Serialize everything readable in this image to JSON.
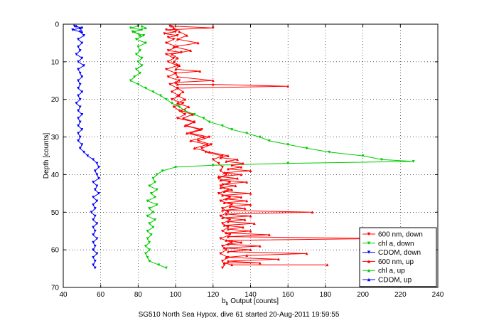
{
  "caption": "SG510 North Sea Hypox, dive 61 started 20-Aug-2011 19:59:55",
  "chart_data": {
    "type": "line",
    "xlabel_main": "b",
    "xlabel_sub": "b",
    "xlabel_rest": " Output [counts]",
    "ylabel": "Depth [counts]",
    "xlim": [
      40,
      240
    ],
    "ylim": [
      0,
      70
    ],
    "y_reversed": true,
    "grid": true,
    "legend_position": "bottom-right",
    "x_ticks": [
      40,
      60,
      80,
      100,
      120,
      140,
      160,
      180,
      200,
      220,
      240
    ],
    "y_ticks": [
      0,
      10,
      20,
      30,
      40,
      50,
      60,
      70
    ],
    "series": [
      {
        "name": "600 nm, down",
        "color": "#ff0000",
        "marker": "down-triangle",
        "points": [
          [
            97,
            0.5
          ],
          [
            120,
            1
          ],
          [
            95,
            1.5
          ],
          [
            100,
            2
          ],
          [
            94,
            2.5
          ],
          [
            101,
            3
          ],
          [
            96,
            3.5
          ],
          [
            99,
            4
          ],
          [
            95,
            5
          ],
          [
            101,
            6
          ],
          [
            96,
            7
          ],
          [
            103,
            7.5
          ],
          [
            95,
            8
          ],
          [
            99,
            9
          ],
          [
            96,
            10
          ],
          [
            101,
            11
          ],
          [
            95,
            12
          ],
          [
            100,
            13
          ],
          [
            96,
            14
          ],
          [
            102,
            15
          ],
          [
            97,
            16
          ],
          [
            101,
            17
          ],
          [
            98,
            18
          ],
          [
            102,
            19
          ],
          [
            98,
            20
          ],
          [
            104,
            21
          ],
          [
            99,
            22
          ],
          [
            102,
            23
          ],
          [
            105,
            24
          ],
          [
            101,
            25
          ],
          [
            110,
            26
          ],
          [
            106,
            27
          ],
          [
            114,
            28
          ],
          [
            108,
            29
          ],
          [
            118,
            30
          ],
          [
            112,
            31
          ],
          [
            119,
            32
          ],
          [
            114,
            33
          ],
          [
            116,
            34
          ],
          [
            125,
            35
          ],
          [
            120,
            36
          ],
          [
            123,
            37
          ],
          [
            125,
            38
          ],
          [
            124,
            39
          ],
          [
            127,
            40
          ],
          [
            123,
            41
          ],
          [
            129,
            42
          ],
          [
            124,
            43
          ],
          [
            128,
            44
          ],
          [
            123,
            45
          ],
          [
            129,
            46
          ],
          [
            124,
            47
          ],
          [
            130,
            48
          ],
          [
            125,
            49
          ],
          [
            128,
            50
          ],
          [
            124,
            51
          ],
          [
            129,
            52
          ],
          [
            125,
            53
          ],
          [
            128,
            54
          ],
          [
            125,
            55
          ],
          [
            129,
            56
          ],
          [
            124,
            57
          ],
          [
            130,
            58
          ],
          [
            125,
            59
          ],
          [
            127,
            60
          ],
          [
            124,
            61
          ],
          [
            128,
            62
          ],
          [
            125,
            63
          ],
          [
            126,
            64
          ],
          [
            125,
            64.8
          ]
        ]
      },
      {
        "name": "chl a, down",
        "color": "#00cc00",
        "marker": "down-triangle",
        "points": [
          [
            80,
            0.5
          ],
          [
            76,
            1
          ],
          [
            82,
            1.5
          ],
          [
            77,
            2
          ],
          [
            83,
            3
          ],
          [
            79,
            4
          ],
          [
            84,
            5
          ],
          [
            80,
            6
          ],
          [
            81,
            7
          ],
          [
            79,
            8
          ],
          [
            82,
            9
          ],
          [
            80,
            10
          ],
          [
            82,
            11
          ],
          [
            79,
            12
          ],
          [
            81,
            13
          ],
          [
            78,
            14
          ],
          [
            76,
            15
          ],
          [
            80,
            16
          ],
          [
            84,
            17
          ],
          [
            88,
            18
          ],
          [
            92,
            19
          ],
          [
            95,
            20
          ],
          [
            98,
            21
          ],
          [
            102,
            22
          ],
          [
            105,
            23
          ],
          [
            110,
            24
          ],
          [
            115,
            25
          ],
          [
            118,
            26
          ],
          [
            125,
            27
          ],
          [
            130,
            28
          ],
          [
            138,
            29
          ],
          [
            145,
            30
          ],
          [
            150,
            31
          ],
          [
            160,
            32
          ],
          [
            170,
            33
          ],
          [
            182,
            34
          ],
          [
            200,
            35
          ],
          [
            210,
            36
          ],
          [
            227,
            36.5
          ],
          [
            160,
            37
          ],
          [
            120,
            37.5
          ],
          [
            100,
            38
          ],
          [
            93,
            39
          ],
          [
            90,
            40
          ],
          [
            88,
            41
          ],
          [
            89,
            42
          ],
          [
            86,
            43
          ],
          [
            90,
            44
          ],
          [
            87,
            45
          ],
          [
            89,
            46
          ],
          [
            85,
            47
          ],
          [
            90,
            48
          ],
          [
            86,
            49
          ],
          [
            88,
            50
          ],
          [
            85,
            51
          ],
          [
            89,
            52
          ],
          [
            86,
            53
          ],
          [
            88,
            54
          ],
          [
            85,
            55
          ],
          [
            87,
            56
          ],
          [
            85,
            57
          ],
          [
            86,
            58
          ],
          [
            84,
            59
          ],
          [
            86,
            60
          ],
          [
            84,
            61
          ],
          [
            85,
            62
          ],
          [
            86,
            63
          ],
          [
            91,
            64
          ],
          [
            95,
            64.8
          ]
        ]
      },
      {
        "name": "CDOM, down",
        "color": "#0000ff",
        "marker": "down-triangle",
        "points": [
          [
            46,
            0.5
          ],
          [
            50,
            1
          ],
          [
            45,
            1.5
          ],
          [
            49,
            2
          ],
          [
            51,
            3
          ],
          [
            48,
            4
          ],
          [
            50,
            5
          ],
          [
            48,
            6
          ],
          [
            49,
            7
          ],
          [
            47,
            8
          ],
          [
            50,
            9
          ],
          [
            48,
            10
          ],
          [
            51,
            11
          ],
          [
            48,
            12
          ],
          [
            49,
            13
          ],
          [
            50,
            14
          ],
          [
            48,
            15
          ],
          [
            49,
            16
          ],
          [
            48,
            17
          ],
          [
            50,
            18
          ],
          [
            48,
            19
          ],
          [
            49,
            20
          ],
          [
            47,
            21
          ],
          [
            49,
            22
          ],
          [
            48,
            23
          ],
          [
            50,
            24
          ],
          [
            48,
            25
          ],
          [
            49,
            26
          ],
          [
            48,
            27
          ],
          [
            50,
            28
          ],
          [
            48,
            29
          ],
          [
            49,
            30
          ],
          [
            48,
            31
          ],
          [
            50,
            32
          ],
          [
            49,
            33
          ],
          [
            51,
            34
          ],
          [
            53,
            35
          ],
          [
            56,
            36
          ],
          [
            58,
            37
          ],
          [
            59,
            38
          ],
          [
            57,
            39
          ],
          [
            58,
            40
          ],
          [
            59,
            41
          ],
          [
            56,
            42
          ],
          [
            58,
            43
          ],
          [
            57,
            44
          ],
          [
            59,
            45
          ],
          [
            56,
            46
          ],
          [
            58,
            47
          ],
          [
            56,
            48
          ],
          [
            57,
            49
          ],
          [
            55,
            50
          ],
          [
            57,
            51
          ],
          [
            56,
            52
          ],
          [
            58,
            53
          ],
          [
            56,
            54
          ],
          [
            57,
            55
          ],
          [
            56,
            56
          ],
          [
            58,
            57
          ],
          [
            56,
            58
          ],
          [
            57,
            59
          ],
          [
            56,
            60
          ],
          [
            58,
            61
          ],
          [
            56,
            62
          ],
          [
            57,
            63
          ],
          [
            56,
            64
          ],
          [
            57,
            64.8
          ]
        ]
      },
      {
        "name": "600 nm, up",
        "color": "#ff0000",
        "marker": "up-triangle",
        "points": [
          [
            181,
            64
          ],
          [
            130,
            64
          ],
          [
            126,
            63.5
          ],
          [
            145,
            63.5
          ],
          [
            128,
            63
          ],
          [
            155,
            62.5
          ],
          [
            127,
            62
          ],
          [
            138,
            61.5
          ],
          [
            170,
            61
          ],
          [
            128,
            60.5
          ],
          [
            140,
            60
          ],
          [
            126,
            59.5
          ],
          [
            145,
            59
          ],
          [
            128,
            58.5
          ],
          [
            135,
            58
          ],
          [
            127,
            57.5
          ],
          [
            210,
            57
          ],
          [
            128,
            56.5
          ],
          [
            150,
            56
          ],
          [
            127,
            55.5
          ],
          [
            140,
            55
          ],
          [
            128,
            54.5
          ],
          [
            136,
            54
          ],
          [
            126,
            53.5
          ],
          [
            142,
            53
          ],
          [
            128,
            52.5
          ],
          [
            137,
            52
          ],
          [
            125,
            51.5
          ],
          [
            140,
            51
          ],
          [
            127,
            50.5
          ],
          [
            173,
            50
          ],
          [
            125,
            49.5
          ],
          [
            137,
            49
          ],
          [
            129,
            48.5
          ],
          [
            140,
            48
          ],
          [
            126,
            47.5
          ],
          [
            138,
            47
          ],
          [
            127,
            46.5
          ],
          [
            135,
            46
          ],
          [
            125,
            45.5
          ],
          [
            140,
            45
          ],
          [
            126,
            44.5
          ],
          [
            130,
            44
          ],
          [
            124,
            43.5
          ],
          [
            132,
            43
          ],
          [
            125,
            42.5
          ],
          [
            138,
            42
          ],
          [
            124,
            41.5
          ],
          [
            133,
            41
          ],
          [
            123,
            40.5
          ],
          [
            135,
            40
          ],
          [
            126,
            39.5
          ],
          [
            140,
            39
          ],
          [
            128,
            38.5
          ],
          [
            135,
            38
          ],
          [
            130,
            37.5
          ],
          [
            136,
            37
          ],
          [
            127,
            36.5
          ],
          [
            133,
            36
          ],
          [
            124,
            35.5
          ],
          [
            128,
            35
          ],
          [
            118,
            34
          ],
          [
            110,
            33
          ],
          [
            117,
            32
          ],
          [
            108,
            31
          ],
          [
            115,
            30
          ],
          [
            106,
            29
          ],
          [
            113,
            28
          ],
          [
            105,
            27
          ],
          [
            110,
            26
          ],
          [
            104,
            25
          ],
          [
            109,
            24
          ],
          [
            103,
            23
          ],
          [
            107,
            22
          ],
          [
            101,
            21
          ],
          [
            105,
            20
          ],
          [
            101,
            19
          ],
          [
            104,
            18
          ],
          [
            101,
            17
          ],
          [
            160,
            16.5
          ],
          [
            120,
            16
          ],
          [
            101,
            16
          ],
          [
            100,
            15.5
          ],
          [
            120,
            15
          ],
          [
            101,
            14
          ],
          [
            100,
            13
          ],
          [
            113,
            12.5
          ],
          [
            100,
            12
          ],
          [
            102,
            11
          ],
          [
            99,
            10
          ],
          [
            101,
            9
          ],
          [
            98,
            8
          ],
          [
            108,
            7
          ],
          [
            99,
            6
          ],
          [
            112,
            5
          ],
          [
            101,
            4
          ],
          [
            106,
            3
          ],
          [
            102,
            2
          ],
          [
            99,
            1
          ],
          [
            98,
            0.5
          ]
        ]
      },
      {
        "name": "chl a, up",
        "color": "#00cc00",
        "marker": "up-triangle",
        "points": [
          [
            82,
            0.5
          ],
          [
            84,
            1
          ],
          [
            78,
            2
          ],
          [
            81,
            3
          ]
        ]
      },
      {
        "name": "CDOM, up",
        "color": "#0000ff",
        "marker": "up-triangle",
        "points": [
          [
            47,
            0.5
          ],
          [
            49,
            1
          ],
          [
            50,
            2
          ]
        ]
      }
    ]
  }
}
